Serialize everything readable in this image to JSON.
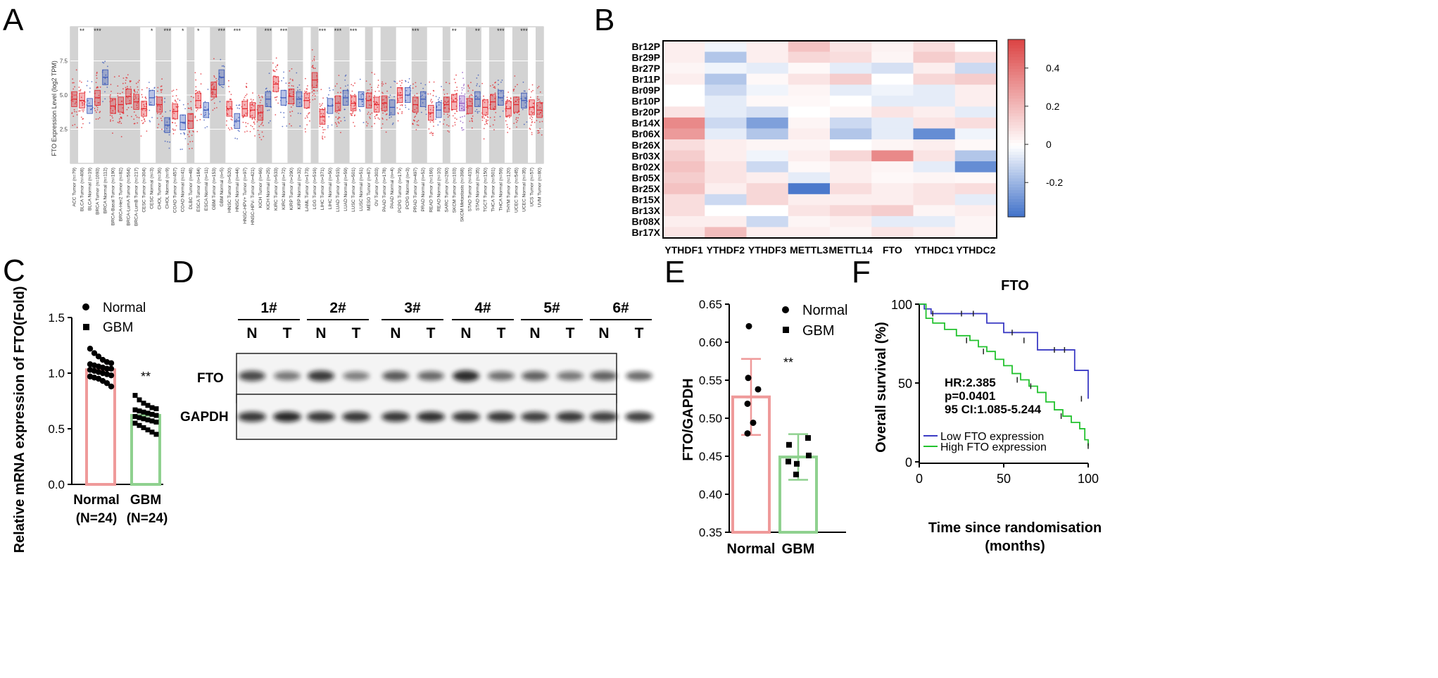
{
  "panels": {
    "a": "A",
    "b": "B",
    "c": "C",
    "d": "D",
    "e": "E",
    "f": "F"
  },
  "colors": {
    "tumor": "#e2232a",
    "normal": "#3554b8",
    "metastasis": "#8a4fbf",
    "gray_band": "#d3d3d3",
    "pink": "#ef9a9a",
    "green": "#8fd18f",
    "km_low": "#3b3bc4",
    "km_high": "#22c22e"
  },
  "panel_a": {
    "chart_data": {
      "type": "box",
      "ylabel": "FTO Expression Level (log2 TPM)",
      "yticks": [
        "2.5",
        "5.0",
        "7.5"
      ],
      "ylim": [
        0,
        10
      ],
      "categories": [
        {
          "label": "ACC Tumor (n=79)",
          "g": "t",
          "m": 4.7,
          "sig": ""
        },
        {
          "label": "BLCA Tumor (n=408)",
          "g": "t",
          "m": 4.6,
          "sig": "**"
        },
        {
          "label": "BLCA Normal (n=19)",
          "g": "n",
          "m": 4.2,
          "sig": ""
        },
        {
          "label": "BRCA Tumor (n=1093)",
          "g": "t",
          "m": 4.8,
          "sig": "***"
        },
        {
          "label": "BRCA Normal (n=112)",
          "g": "n",
          "m": 6.3,
          "sig": ""
        },
        {
          "label": "BRCA-Basal Tumor (n=190)",
          "g": "t",
          "m": 4.2,
          "sig": ""
        },
        {
          "label": "BRCA-Her2 Tumor (n=82)",
          "g": "t",
          "m": 4.3,
          "sig": ""
        },
        {
          "label": "BRCA-LumA Tumor (n=564)",
          "g": "t",
          "m": 4.9,
          "sig": ""
        },
        {
          "label": "BRCA-LumB Tumor (n=217)",
          "g": "t",
          "m": 4.5,
          "sig": ""
        },
        {
          "label": "CESC Tumor (n=304)",
          "g": "t",
          "m": 4.0,
          "sig": ""
        },
        {
          "label": "CESC Normal (n=3)",
          "g": "n",
          "m": 4.8,
          "sig": "*"
        },
        {
          "label": "CHOL Tumor (n=36)",
          "g": "t",
          "m": 4.3,
          "sig": ""
        },
        {
          "label": "CHOL Normal (n=9)",
          "g": "n",
          "m": 2.8,
          "sig": "***"
        },
        {
          "label": "COAD Tumor (n=457)",
          "g": "t",
          "m": 3.8,
          "sig": ""
        },
        {
          "label": "COAD Normal (n=41)",
          "g": "n",
          "m": 3.0,
          "sig": "*"
        },
        {
          "label": "DLBC Tumor (n=48)",
          "g": "t",
          "m": 3.1,
          "sig": ""
        },
        {
          "label": "ESCA Tumor (n=184)",
          "g": "t",
          "m": 4.6,
          "sig": "*"
        },
        {
          "label": "ESCA Normal (n=11)",
          "g": "n",
          "m": 3.9,
          "sig": ""
        },
        {
          "label": "GBM Tumor (n=153)",
          "g": "t",
          "m": 5.4,
          "sig": ""
        },
        {
          "label": "GBM Normal (n=5)",
          "g": "n",
          "m": 6.3,
          "sig": "***"
        },
        {
          "label": "HNSC Tumor (n=520)",
          "g": "t",
          "m": 4.0,
          "sig": ""
        },
        {
          "label": "HNSC Normal (n=44)",
          "g": "n",
          "m": 3.1,
          "sig": "***"
        },
        {
          "label": "HNSC-HPV+ Tumor (n=97)",
          "g": "t",
          "m": 4.0,
          "sig": ""
        },
        {
          "label": "HNSC-HPV- Tumor (n=421)",
          "g": "t",
          "m": 3.9,
          "sig": ""
        },
        {
          "label": "KICH Tumor (n=66)",
          "g": "t",
          "m": 3.7,
          "sig": ""
        },
        {
          "label": "KICH Normal (n=25)",
          "g": "n",
          "m": 4.7,
          "sig": "***"
        },
        {
          "label": "KIRC Tumor (n=533)",
          "g": "t",
          "m": 5.8,
          "sig": ""
        },
        {
          "label": "KIRC Normal (n=72)",
          "g": "n",
          "m": 4.8,
          "sig": "***"
        },
        {
          "label": "KIRP Tumor (n=290)",
          "g": "t",
          "m": 4.9,
          "sig": ""
        },
        {
          "label": "KIRP Normal (n=32)",
          "g": "n",
          "m": 4.7,
          "sig": ""
        },
        {
          "label": "LAML Tumor (n=173)",
          "g": "t",
          "m": 4.6,
          "sig": ""
        },
        {
          "label": "LGG Tumor (n=516)",
          "g": "t",
          "m": 6.1,
          "sig": ""
        },
        {
          "label": "LIHC Tumor (n=371)",
          "g": "t",
          "m": 3.4,
          "sig": "***"
        },
        {
          "label": "LIHC Normal (n=50)",
          "g": "n",
          "m": 4.2,
          "sig": ""
        },
        {
          "label": "LUAD Tumor (n=515)",
          "g": "t",
          "m": 4.4,
          "sig": "***"
        },
        {
          "label": "LUAD Normal (n=59)",
          "g": "n",
          "m": 4.8,
          "sig": ""
        },
        {
          "label": "LUSC Tumor (n=501)",
          "g": "t",
          "m": 4.4,
          "sig": "***"
        },
        {
          "label": "LUSC Normal (n=51)",
          "g": "n",
          "m": 4.7,
          "sig": ""
        },
        {
          "label": "MESO Tumor (n=87)",
          "g": "t",
          "m": 4.6,
          "sig": ""
        },
        {
          "label": "OV Tumor (n=303)",
          "g": "t",
          "m": 4.3,
          "sig": ""
        },
        {
          "label": "PAAD Tumor (n=178)",
          "g": "t",
          "m": 4.4,
          "sig": ""
        },
        {
          "label": "PAAD Normal (n=4)",
          "g": "n",
          "m": 4.1,
          "sig": ""
        },
        {
          "label": "PCPG Tumor (n=179)",
          "g": "t",
          "m": 5.0,
          "sig": ""
        },
        {
          "label": "PCPG Normal (n=3)",
          "g": "n",
          "m": 5.0,
          "sig": ""
        },
        {
          "label": "PRAD Tumor (n=497)",
          "g": "t",
          "m": 4.3,
          "sig": "***"
        },
        {
          "label": "PRAD Normal (n=52)",
          "g": "n",
          "m": 4.7,
          "sig": ""
        },
        {
          "label": "READ Tumor (n=166)",
          "g": "t",
          "m": 3.7,
          "sig": ""
        },
        {
          "label": "READ Normal (n=10)",
          "g": "n",
          "m": 3.9,
          "sig": ""
        },
        {
          "label": "SARC Tumor (n=260)",
          "g": "t",
          "m": 4.3,
          "sig": ""
        },
        {
          "label": "SKCM Tumor (n=103)",
          "g": "t",
          "m": 4.5,
          "sig": "**"
        },
        {
          "label": "SKCM Metastasis (n=368)",
          "g": "m",
          "m": 4.4,
          "sig": ""
        },
        {
          "label": "STAD Tumor (n=415)",
          "g": "t",
          "m": 4.2,
          "sig": ""
        },
        {
          "label": "STAD Normal (n=35)",
          "g": "n",
          "m": 4.7,
          "sig": "**"
        },
        {
          "label": "TGCT Tumor (n=150)",
          "g": "t",
          "m": 4.1,
          "sig": ""
        },
        {
          "label": "THCA Tumor (n=501)",
          "g": "t",
          "m": 4.5,
          "sig": ""
        },
        {
          "label": "THCA Normal (n=59)",
          "g": "n",
          "m": 4.8,
          "sig": "***"
        },
        {
          "label": "THYM Tumor (n=120)",
          "g": "t",
          "m": 4.0,
          "sig": ""
        },
        {
          "label": "UCEC Tumor (n=545)",
          "g": "t",
          "m": 4.3,
          "sig": ""
        },
        {
          "label": "UCEC Normal (n=35)",
          "g": "n",
          "m": 4.6,
          "sig": "***"
        },
        {
          "label": "UCS Tumor (n=57)",
          "g": "t",
          "m": 4.1,
          "sig": ""
        },
        {
          "label": "UVM Tumor (n=80)",
          "g": "t",
          "m": 3.9,
          "sig": ""
        }
      ]
    }
  },
  "panel_b": {
    "chart_data": {
      "type": "heatmap",
      "rows": [
        "Br12P",
        "Br29P",
        "Br27P",
        "Br11P",
        "Br09P",
        "Br10P",
        "Br20P",
        "Br14X",
        "Br06X",
        "Br26X",
        "Br03X",
        "Br02X",
        "Br05X",
        "Br25X",
        "Br15X",
        "Br13X",
        "Br08X",
        "Br17X"
      ],
      "cols": [
        "YTHDF1",
        "YTHDF2",
        "YTHDF3",
        "METTL3",
        "METTL14",
        "FTO",
        "YTHDC1",
        "YTHDC2"
      ],
      "values": [
        [
          0.05,
          -0.03,
          0.05,
          0.18,
          0.08,
          0.04,
          0.1,
          0.0
        ],
        [
          0.05,
          -0.15,
          0.05,
          0.12,
          0.1,
          0.03,
          0.15,
          0.1
        ],
        [
          0.03,
          -0.03,
          -0.05,
          0.02,
          -0.05,
          -0.08,
          0.05,
          -0.1
        ],
        [
          0.05,
          -0.15,
          0.02,
          0.08,
          0.15,
          0.0,
          0.12,
          0.15
        ],
        [
          0.0,
          -0.1,
          -0.03,
          0.03,
          -0.05,
          -0.03,
          -0.05,
          0.05
        ],
        [
          0.0,
          -0.05,
          0.02,
          0.02,
          0.0,
          -0.05,
          -0.05,
          0.05
        ],
        [
          0.08,
          -0.05,
          -0.08,
          0.0,
          0.03,
          0.08,
          0.05,
          -0.05
        ],
        [
          0.35,
          -0.1,
          -0.25,
          0.03,
          -0.1,
          -0.05,
          0.08,
          0.1
        ],
        [
          0.3,
          -0.05,
          -0.15,
          0.05,
          -0.15,
          -0.05,
          -0.3,
          -0.03
        ],
        [
          0.1,
          0.05,
          0.03,
          0.03,
          0.0,
          0.03,
          0.05,
          0.02
        ],
        [
          0.15,
          0.05,
          -0.03,
          0.05,
          0.12,
          0.35,
          0.08,
          -0.15
        ],
        [
          0.18,
          0.08,
          -0.1,
          0.02,
          0.05,
          0.03,
          -0.05,
          -0.3
        ],
        [
          0.15,
          0.08,
          0.05,
          -0.05,
          0.05,
          0.02,
          0.03,
          0.02
        ],
        [
          0.18,
          0.05,
          0.12,
          -0.35,
          0.1,
          0.05,
          0.08,
          0.1
        ],
        [
          0.1,
          -0.1,
          0.12,
          0.05,
          0.05,
          0.05,
          0.08,
          -0.05
        ],
        [
          0.1,
          0.0,
          0.0,
          0.08,
          0.12,
          0.15,
          0.03,
          0.05
        ],
        [
          0.05,
          0.05,
          -0.1,
          0.03,
          0.05,
          -0.05,
          -0.05,
          0.03
        ],
        [
          0.08,
          0.2,
          0.05,
          0.05,
          0.03,
          0.08,
          0.05,
          0.03
        ]
      ],
      "colorbar_ticks": [
        "0.4",
        "0.2",
        "0",
        "-0.2"
      ],
      "colorbar_values": [
        0.4,
        0.2,
        0,
        -0.2
      ],
      "range": [
        -0.38,
        0.55
      ]
    }
  },
  "panel_c": {
    "chart_data": {
      "type": "bar",
      "ylabel": "Relative mRNA expression of FTO(Fold)",
      "yticks": [
        "0.0",
        "0.5",
        "1.0",
        "1.5"
      ],
      "ylim": [
        0,
        1.5
      ],
      "categories": [
        "Normal",
        "GBM"
      ],
      "sublabels": [
        "(N=24)",
        "(N=24)"
      ],
      "values": [
        1.03,
        0.62
      ],
      "sem": [
        0.02,
        0.02
      ],
      "legend": [
        "Normal",
        "GBM"
      ],
      "sig": "**",
      "points_normal": [
        1.22,
        1.18,
        1.15,
        1.12,
        1.1,
        1.09,
        1.08,
        1.07,
        1.06,
        1.05,
        1.04,
        1.04,
        1.03,
        1.02,
        1.01,
        1.0,
        0.99,
        0.98,
        0.97,
        0.96,
        0.95,
        0.93,
        0.91,
        0.88
      ],
      "points_gbm": [
        0.8,
        0.76,
        0.73,
        0.71,
        0.69,
        0.68,
        0.67,
        0.66,
        0.65,
        0.64,
        0.63,
        0.62,
        0.61,
        0.6,
        0.59,
        0.58,
        0.57,
        0.56,
        0.55,
        0.53,
        0.51,
        0.49,
        0.47,
        0.45
      ]
    }
  },
  "panel_d": {
    "pairs": [
      "1#",
      "2#",
      "3#",
      "4#",
      "5#",
      "6#"
    ],
    "lane_labels": [
      "N",
      "T"
    ],
    "rows": [
      "FTO",
      "GAPDH"
    ],
    "fto_intensity": [
      0.75,
      0.45,
      0.85,
      0.4,
      0.65,
      0.55,
      0.95,
      0.5,
      0.6,
      0.45,
      0.6,
      0.55
    ],
    "gapdh_intensity": [
      0.8,
      0.9,
      0.8,
      0.8,
      0.8,
      0.85,
      0.8,
      0.8,
      0.75,
      0.8,
      0.75,
      0.75
    ]
  },
  "panel_e": {
    "chart_data": {
      "type": "bar",
      "ylabel": "FTO/GAPDH",
      "yticks": [
        "0.35",
        "0.40",
        "0.45",
        "0.50",
        "0.55",
        "0.60",
        "0.65"
      ],
      "ylim": [
        0.35,
        0.65
      ],
      "categories": [
        "Normal",
        "GBM"
      ],
      "values": [
        0.528,
        0.449
      ],
      "sd": [
        0.05,
        0.03
      ],
      "legend": [
        "Normal",
        "GBM"
      ],
      "sig": "**",
      "points_normal": [
        0.621,
        0.553,
        0.538,
        0.519,
        0.494,
        0.48
      ],
      "points_gbm": [
        0.474,
        0.465,
        0.451,
        0.443,
        0.44,
        0.426
      ]
    }
  },
  "panel_f": {
    "chart_data": {
      "type": "line",
      "title": "FTO",
      "xlabel": "Time since randomisation",
      "xlabel_unit": "(months)",
      "ylabel": "Overall survival (%)",
      "xticks": [
        "0",
        "50",
        "100"
      ],
      "yticks": [
        "0",
        "50",
        "100"
      ],
      "xlim": [
        0,
        100
      ],
      "ylim": [
        0,
        100
      ],
      "annotations": [
        "HR:2.385",
        "p=0.0401",
        "95 CI:1.085-5.244"
      ],
      "series": [
        {
          "name": "Low FTO expression",
          "color": "#3b3bc4",
          "x": [
            0,
            3,
            7,
            12,
            40,
            50,
            70,
            88,
            92,
            100
          ],
          "y": [
            100,
            97,
            94,
            94,
            88,
            82,
            71,
            71,
            58,
            40
          ]
        },
        {
          "name": "High FTO expression",
          "color": "#22c22e",
          "x": [
            0,
            4,
            8,
            15,
            22,
            30,
            35,
            40,
            45,
            50,
            55,
            60,
            65,
            70,
            75,
            80,
            85,
            90,
            95,
            98,
            100
          ],
          "y": [
            100,
            91,
            88,
            84,
            80,
            77,
            73,
            70,
            65,
            61,
            56,
            52,
            48,
            44,
            38,
            33,
            29,
            25,
            21,
            14,
            10
          ]
        }
      ],
      "censor_low": [
        [
          8,
          94
        ],
        [
          25,
          94
        ],
        [
          32,
          94
        ],
        [
          55,
          82
        ],
        [
          62,
          77
        ],
        [
          80,
          71
        ],
        [
          86,
          71
        ],
        [
          96,
          40
        ]
      ],
      "censor_high": [
        [
          28,
          77
        ],
        [
          38,
          70
        ],
        [
          58,
          52
        ],
        [
          66,
          48
        ],
        [
          84,
          29
        ],
        [
          100,
          10
        ]
      ]
    }
  }
}
